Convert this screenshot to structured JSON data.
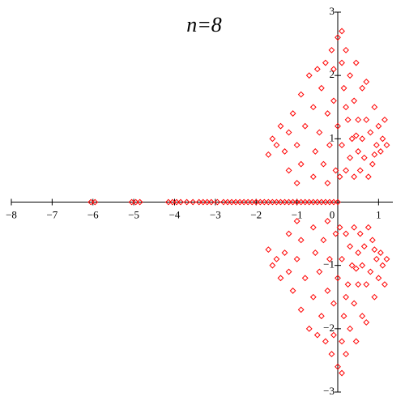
{
  "chart_data": {
    "type": "scatter",
    "title": "n=8",
    "color": "#ff0000",
    "marker": "diamond",
    "xlim": [
      -8,
      1.35
    ],
    "ylim": [
      -3,
      3
    ],
    "xticks": [
      {
        "value": -8,
        "label": "−8"
      },
      {
        "value": -7,
        "label": "−7"
      },
      {
        "value": -6,
        "label": "−6"
      },
      {
        "value": -5,
        "label": "−5"
      },
      {
        "value": -4,
        "label": "−4"
      },
      {
        "value": -3,
        "label": "−3"
      },
      {
        "value": -2,
        "label": "−2"
      },
      {
        "value": -1,
        "label": "−1"
      },
      0,
      1
    ],
    "yticks": [
      {
        "value": -3,
        "label": "−3"
      },
      {
        "value": -2,
        "label": "−2"
      },
      {
        "value": -1,
        "label": "−1"
      },
      1,
      2,
      3
    ],
    "x": [
      -1.7,
      -1.6,
      -1.5,
      -1.4,
      -1.3,
      -1.2,
      -1.1,
      -1.0,
      -0.9,
      -0.8,
      -0.7,
      -0.6,
      -0.55,
      -0.5,
      -0.45,
      -0.4,
      -0.35,
      -0.3,
      -0.25,
      -0.2,
      -0.15,
      -0.1,
      -0.05,
      0,
      0,
      0.05,
      0.1,
      0.1,
      0.15,
      0.2,
      0.2,
      0.25,
      0.3,
      0.3,
      0.35,
      0.4,
      0.4,
      0.45,
      0.5,
      0.5,
      0.55,
      0.6,
      0.6,
      0.65,
      0.7,
      0.75,
      0.8,
      0.85,
      0.9,
      0.95,
      1.0,
      1.05,
      1.1,
      1.15,
      1.2,
      -0.25,
      -0.9,
      -1.2,
      0.1,
      -0.1,
      0.7,
      0.2,
      -0.6,
      -1.0,
      0.45,
      0.9,
      -1.7,
      -1.6,
      -1.5,
      -1.4,
      -1.3,
      -1.2,
      -1.1,
      -1.0,
      -0.9,
      -0.8,
      -0.7,
      -0.6,
      -0.55,
      -0.5,
      -0.45,
      -0.4,
      -0.35,
      -0.3,
      -0.25,
      -0.2,
      -0.15,
      -0.1,
      -0.05,
      0,
      0,
      0.05,
      0.1,
      0.1,
      0.15,
      0.2,
      0.2,
      0.25,
      0.3,
      0.3,
      0.35,
      0.4,
      0.4,
      0.45,
      0.5,
      0.5,
      0.55,
      0.6,
      0.6,
      0.65,
      0.7,
      0.75,
      0.8,
      0.85,
      0.9,
      0.95,
      1.0,
      1.05,
      1.1,
      1.15,
      1.2,
      -0.25,
      -0.9,
      -1.2,
      0.1,
      -0.1,
      0.7,
      0.2,
      -0.6,
      -1.0,
      0.45,
      0.9,
      -6.05,
      -5.95,
      -5.05,
      -4.95,
      -4.85,
      -4.15,
      -4.05,
      -3.95,
      -3.85,
      -3.7,
      -3.55,
      -3.4,
      -3.3,
      -3.2,
      -3.1,
      -2.95,
      -2.8,
      -2.7,
      -2.6,
      -2.5,
      -2.4,
      -2.3,
      -2.2,
      -2.1,
      -2.0,
      -1.9,
      -1.8,
      -1.7,
      -1.6,
      -1.5,
      -1.4,
      -1.3,
      -1.2,
      -1.1,
      -1.0,
      -0.9,
      -0.8,
      -0.7,
      -0.6,
      -0.5,
      -0.4,
      -0.3,
      -0.2,
      -0.1,
      0
    ],
    "values": [
      0.75,
      1.0,
      0.9,
      1.2,
      0.8,
      1.1,
      1.4,
      0.9,
      1.7,
      1.2,
      2.0,
      1.5,
      0.8,
      2.1,
      1.1,
      1.8,
      0.6,
      2.2,
      1.4,
      0.9,
      2.4,
      1.6,
      0.5,
      2.6,
      1.2,
      0.4,
      2.2,
      0.9,
      1.8,
      0.5,
      2.4,
      1.3,
      0.7,
      2.0,
      1.0,
      0.4,
      1.6,
      2.2,
      0.8,
      1.3,
      0.5,
      1.0,
      1.8,
      0.7,
      1.3,
      0.4,
      1.1,
      0.6,
      1.5,
      0.9,
      1.2,
      0.8,
      1.0,
      1.3,
      0.9,
      0.3,
      0.6,
      0.5,
      2.7,
      2.1,
      1.9,
      1.5,
      0.4,
      0.3,
      1.05,
      0.75,
      -0.75,
      -1.0,
      -0.9,
      -1.2,
      -0.8,
      -1.1,
      -1.4,
      -0.9,
      -1.7,
      -1.2,
      -2.0,
      -1.5,
      -0.8,
      -2.1,
      -1.1,
      -1.8,
      -0.6,
      -2.2,
      -1.4,
      -0.9,
      -2.4,
      -1.6,
      -0.5,
      -2.6,
      -1.2,
      -0.4,
      -2.2,
      -0.9,
      -1.8,
      -0.5,
      -2.4,
      -1.3,
      -0.7,
      -2.0,
      -1.0,
      -0.4,
      -1.6,
      -2.2,
      -0.8,
      -1.3,
      -0.5,
      -1.0,
      -1.8,
      -0.7,
      -1.3,
      -0.4,
      -1.1,
      -0.6,
      -1.5,
      -0.9,
      -1.2,
      -0.8,
      -1.0,
      -1.3,
      -0.9,
      -0.3,
      -0.6,
      -0.5,
      -2.7,
      -2.1,
      -1.9,
      -1.5,
      -0.4,
      -0.3,
      -1.05,
      -0.75,
      0,
      0,
      0,
      0,
      0,
      0,
      0,
      0,
      0,
      0,
      0,
      0,
      0,
      0,
      0,
      0,
      0,
      0,
      0,
      0,
      0,
      0,
      0,
      0,
      0,
      0,
      0,
      0,
      0,
      0,
      0,
      0,
      0,
      0,
      0,
      0,
      0,
      0,
      0,
      0,
      0,
      0,
      0,
      0,
      0
    ]
  }
}
